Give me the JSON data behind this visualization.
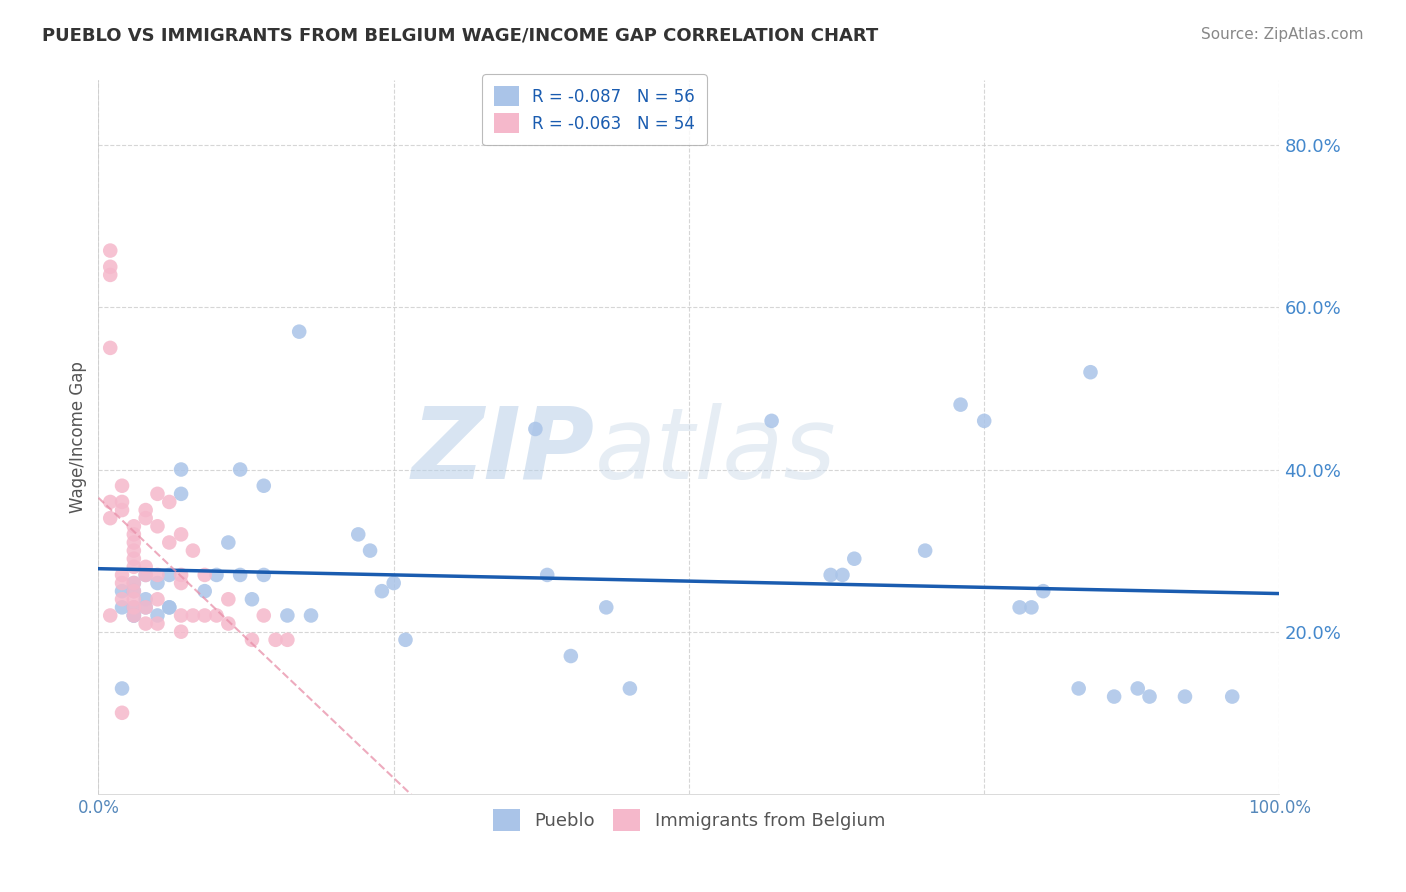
{
  "title": "PUEBLO VS IMMIGRANTS FROM BELGIUM WAGE/INCOME GAP CORRELATION CHART",
  "source": "Source: ZipAtlas.com",
  "ylabel": "Wage/Income Gap",
  "xlim": [
    0.0,
    1.0
  ],
  "ylim": [
    0.0,
    0.88
  ],
  "yticks": [
    0.2,
    0.4,
    0.6,
    0.8
  ],
  "ytick_labels": [
    "20.0%",
    "40.0%",
    "60.0%",
    "80.0%"
  ],
  "xticks": [
    0.0,
    0.25,
    0.5,
    0.75,
    1.0
  ],
  "xtick_labels": [
    "0.0%",
    "",
    "",
    "",
    "100.0%"
  ],
  "pueblo_color": "#aac4e8",
  "belgium_color": "#f5b8cb",
  "pueblo_line_color": "#1a5cb0",
  "belgium_line_color": "#e88fa8",
  "background_color": "#ffffff",
  "grid_color": "#cccccc",
  "watermark_left": "ZIP",
  "watermark_right": "atlas",
  "legend_entries": [
    {
      "label": "R = -0.087   N = 56",
      "color": "#aac4e8"
    },
    {
      "label": "R = -0.063   N = 54",
      "color": "#f5b8cb"
    }
  ],
  "pueblo_x": [
    0.02,
    0.02,
    0.02,
    0.03,
    0.03,
    0.03,
    0.03,
    0.04,
    0.04,
    0.05,
    0.06,
    0.06,
    0.07,
    0.07,
    0.09,
    0.1,
    0.11,
    0.12,
    0.12,
    0.13,
    0.14,
    0.14,
    0.16,
    0.17,
    0.18,
    0.22,
    0.23,
    0.24,
    0.25,
    0.26,
    0.37,
    0.38,
    0.4,
    0.43,
    0.45,
    0.57,
    0.62,
    0.63,
    0.64,
    0.7,
    0.73,
    0.75,
    0.78,
    0.79,
    0.8,
    0.83,
    0.84,
    0.86,
    0.88,
    0.89,
    0.92,
    0.96,
    0.03,
    0.04,
    0.05,
    0.06
  ],
  "pueblo_y": [
    0.13,
    0.25,
    0.23,
    0.22,
    0.26,
    0.25,
    0.22,
    0.27,
    0.24,
    0.26,
    0.27,
    0.23,
    0.4,
    0.37,
    0.25,
    0.27,
    0.31,
    0.27,
    0.4,
    0.24,
    0.27,
    0.38,
    0.22,
    0.57,
    0.22,
    0.32,
    0.3,
    0.25,
    0.26,
    0.19,
    0.45,
    0.27,
    0.17,
    0.23,
    0.13,
    0.46,
    0.27,
    0.27,
    0.29,
    0.3,
    0.48,
    0.46,
    0.23,
    0.23,
    0.25,
    0.13,
    0.52,
    0.12,
    0.13,
    0.12,
    0.12,
    0.12,
    0.23,
    0.23,
    0.22,
    0.23
  ],
  "belgium_x": [
    0.01,
    0.01,
    0.01,
    0.01,
    0.01,
    0.01,
    0.01,
    0.02,
    0.02,
    0.02,
    0.02,
    0.02,
    0.02,
    0.02,
    0.03,
    0.03,
    0.03,
    0.03,
    0.03,
    0.03,
    0.03,
    0.03,
    0.03,
    0.03,
    0.03,
    0.04,
    0.04,
    0.04,
    0.04,
    0.04,
    0.04,
    0.05,
    0.05,
    0.05,
    0.05,
    0.05,
    0.06,
    0.06,
    0.07,
    0.07,
    0.07,
    0.07,
    0.07,
    0.08,
    0.08,
    0.09,
    0.09,
    0.1,
    0.11,
    0.11,
    0.13,
    0.14,
    0.15,
    0.16
  ],
  "belgium_y": [
    0.34,
    0.36,
    0.64,
    0.65,
    0.67,
    0.55,
    0.22,
    0.38,
    0.36,
    0.35,
    0.27,
    0.26,
    0.24,
    0.1,
    0.33,
    0.32,
    0.31,
    0.3,
    0.29,
    0.28,
    0.26,
    0.25,
    0.24,
    0.23,
    0.22,
    0.35,
    0.34,
    0.28,
    0.27,
    0.23,
    0.21,
    0.37,
    0.33,
    0.27,
    0.24,
    0.21,
    0.36,
    0.31,
    0.32,
    0.27,
    0.26,
    0.22,
    0.2,
    0.3,
    0.22,
    0.27,
    0.22,
    0.22,
    0.24,
    0.21,
    0.19,
    0.22,
    0.19,
    0.19
  ]
}
